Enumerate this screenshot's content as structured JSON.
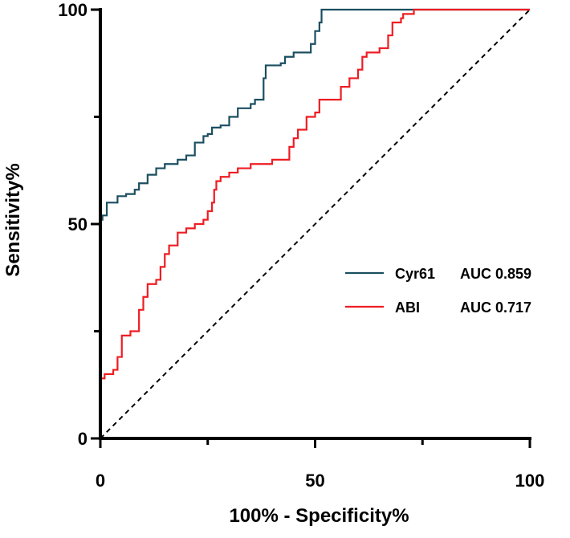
{
  "chart_data": {
    "type": "line",
    "title": "",
    "xlabel": "100% - Specificity%",
    "ylabel": "Sensitivity%",
    "xlim": [
      0,
      100
    ],
    "ylim": [
      0,
      100
    ],
    "xticks": [
      "0",
      "50",
      "100"
    ],
    "yticks": [
      "0",
      "50",
      "100"
    ],
    "grid": false,
    "legend_position": "right",
    "reference_line": {
      "name": "chance",
      "color": "#000000",
      "style": "dashed",
      "points": [
        [
          0,
          0
        ],
        [
          100,
          100
        ]
      ]
    },
    "series": [
      {
        "name": "Cyr61",
        "legend_name": "Cyr61",
        "legend_auc": "AUC 0.859",
        "auc": 0.859,
        "color": "#1b4f60",
        "step": true,
        "points": [
          [
            0,
            0
          ],
          [
            0,
            51
          ],
          [
            0.5,
            52
          ],
          [
            1.5,
            53
          ],
          [
            1.5,
            55
          ],
          [
            4,
            55
          ],
          [
            4,
            56.5
          ],
          [
            6,
            57
          ],
          [
            8,
            58
          ],
          [
            9,
            59.5
          ],
          [
            11,
            61.5
          ],
          [
            13,
            63
          ],
          [
            15,
            64
          ],
          [
            18,
            65
          ],
          [
            20,
            65
          ],
          [
            20,
            66
          ],
          [
            22,
            67
          ],
          [
            22,
            69
          ],
          [
            24,
            70.5
          ],
          [
            25,
            71
          ],
          [
            26,
            72.5
          ],
          [
            28,
            73
          ],
          [
            30,
            75
          ],
          [
            32,
            77
          ],
          [
            35,
            78
          ],
          [
            36,
            79
          ],
          [
            38,
            81
          ],
          [
            38,
            84
          ],
          [
            38.5,
            87
          ],
          [
            42,
            87.5
          ],
          [
            43,
            89
          ],
          [
            45,
            90
          ],
          [
            48,
            90
          ],
          [
            49,
            92
          ],
          [
            50,
            95
          ],
          [
            51,
            97
          ],
          [
            51.5,
            100
          ],
          [
            100,
            100
          ]
        ]
      },
      {
        "name": "ABI",
        "legend_name": "ABI",
        "legend_auc": "AUC 0.717",
        "auc": 0.717,
        "color": "#ee1d23",
        "step": true,
        "points": [
          [
            0,
            0
          ],
          [
            0,
            14
          ],
          [
            1,
            15
          ],
          [
            3,
            16
          ],
          [
            4,
            19
          ],
          [
            5,
            24
          ],
          [
            7,
            25
          ],
          [
            9,
            25
          ],
          [
            9,
            30
          ],
          [
            10,
            33
          ],
          [
            11,
            36
          ],
          [
            13,
            37
          ],
          [
            14,
            40
          ],
          [
            15,
            43
          ],
          [
            16,
            45
          ],
          [
            18,
            48
          ],
          [
            20,
            49
          ],
          [
            22,
            50
          ],
          [
            24,
            51
          ],
          [
            25,
            53
          ],
          [
            26,
            55
          ],
          [
            26.5,
            58
          ],
          [
            27,
            60
          ],
          [
            28,
            61
          ],
          [
            30,
            62
          ],
          [
            32,
            63
          ],
          [
            35,
            64
          ],
          [
            38,
            64
          ],
          [
            40,
            65
          ],
          [
            43,
            65
          ],
          [
            44,
            68
          ],
          [
            45,
            70
          ],
          [
            46,
            72
          ],
          [
            48,
            75
          ],
          [
            50,
            76
          ],
          [
            51,
            79
          ],
          [
            55,
            79
          ],
          [
            56,
            82
          ],
          [
            58,
            84
          ],
          [
            60,
            86
          ],
          [
            61,
            89
          ],
          [
            62,
            90
          ],
          [
            65,
            91
          ],
          [
            67,
            94
          ],
          [
            68,
            97
          ],
          [
            70,
            98
          ],
          [
            70.5,
            99
          ],
          [
            73,
            100
          ],
          [
            100,
            100
          ]
        ]
      }
    ]
  }
}
